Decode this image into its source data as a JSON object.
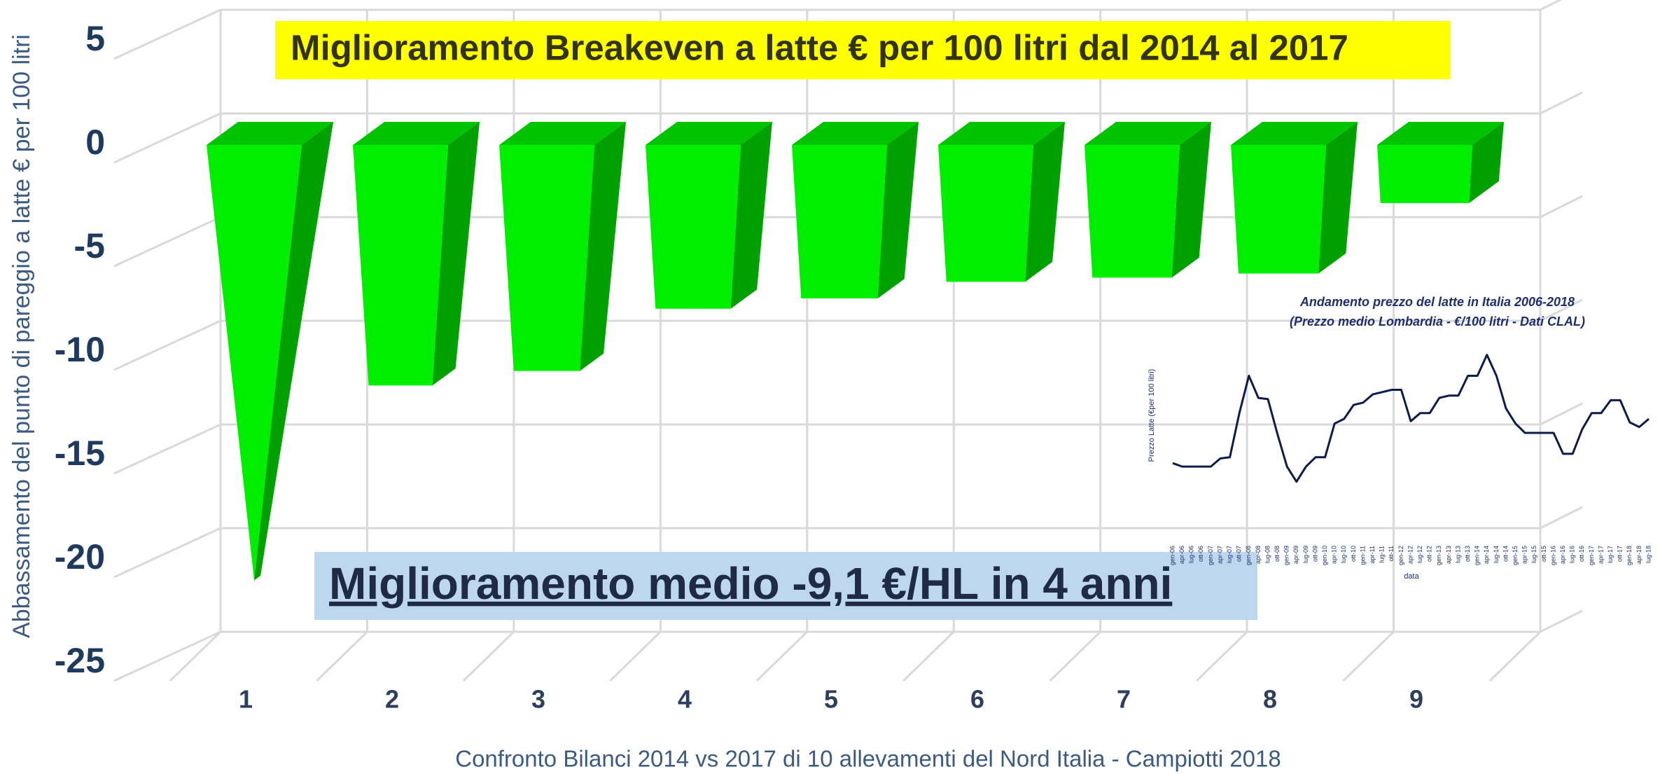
{
  "chart_data": [
    {
      "type": "bar",
      "title": "Miglioramento Breakeven a latte € per 100 litri dal 2014 al 2017",
      "annotation": "Miglioramento medio -9,1 €/HL in 4 anni",
      "ylabel": "Abbassamento del punto di pareggio a latte € per 100 litri",
      "xlabel": "Confronto Bilanci 2014 vs 2017 di 10 allevamenti del Nord Italia - Campiotti 2018",
      "categories": [
        "1",
        "2",
        "3",
        "4",
        "5",
        "6",
        "7",
        "8",
        "9"
      ],
      "values": [
        -21,
        -11.6,
        -10.9,
        -7.9,
        -7.4,
        -6.6,
        -6.4,
        -6.2,
        -2.8
      ],
      "color": "#00ee00",
      "ylim": [
        -25,
        5
      ],
      "yticks": [
        5,
        0,
        -5,
        -10,
        -15,
        -20,
        -25
      ],
      "grid": true
    },
    {
      "type": "line",
      "title": "Andamento prezzo del latte in Italia 2006-2018",
      "subtitle": "(Prezzo medio Lombardia - €/100 litri - Dati CLAL)",
      "ylabel": "Prezzo Latte (€per 100 litri)",
      "xlabel": "data",
      "categories": [
        "gen-06",
        "apr-06",
        "lug-06",
        "ott-06",
        "gen-07",
        "apr-07",
        "lug-07",
        "ott-07",
        "gen-08",
        "apr-08",
        "lug-08",
        "ott-08",
        "gen-09",
        "apr-09",
        "lug-09",
        "ott-09",
        "gen-10",
        "apr-10",
        "lug-10",
        "ott-10",
        "gen-11",
        "apr-11",
        "lug-11",
        "ott-11",
        "gen-12",
        "apr-12",
        "lug-12",
        "ott-12",
        "gen-13",
        "apr-13",
        "lug-13",
        "ott-13",
        "gen-14",
        "apr-14",
        "lug-14",
        "ott-14",
        "gen-15",
        "apr-15",
        "lug-15",
        "ott-15",
        "gen-16",
        "apr-16",
        "lug-16",
        "ott-16",
        "gen-17",
        "apr-17",
        "lug-17",
        "ott-17",
        "gen-18",
        "apr-18",
        "lug-18"
      ],
      "values": [
        37,
        36.7,
        36.7,
        36.7,
        36.7,
        37.4,
        37.5,
        41.3,
        44.5,
        42.6,
        42.5,
        39.5,
        36.7,
        35.4,
        36.7,
        37.5,
        37.5,
        40.4,
        40.8,
        42,
        42.2,
        42.9,
        43.1,
        43.3,
        43.3,
        40.6,
        41.3,
        41.3,
        42.6,
        42.8,
        42.8,
        44.5,
        44.5,
        46.3,
        44.5,
        41.7,
        40.4,
        39.6,
        39.6,
        39.6,
        39.6,
        37.8,
        37.8,
        39.9,
        41.3,
        41.3,
        42.4,
        42.4,
        40.5,
        40.1,
        40.8
      ],
      "color": "#0d1b4d",
      "ylim": [
        34,
        47
      ]
    }
  ]
}
